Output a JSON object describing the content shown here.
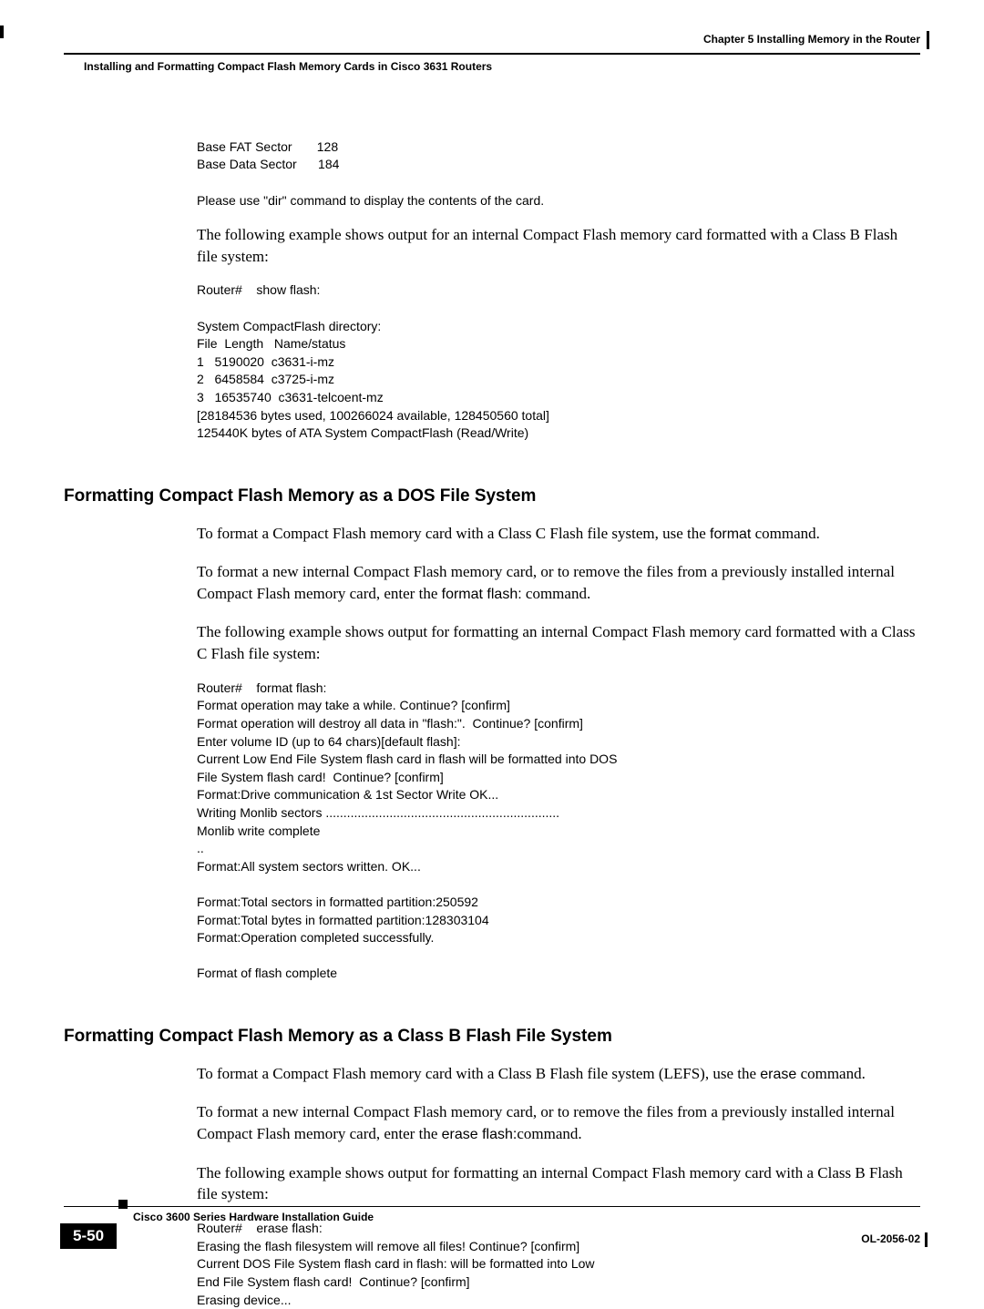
{
  "header": {
    "chapter": "Chapter 5    Installing Memory in the Router",
    "section": "Installing and Formatting Compact Flash Memory Cards in Cisco 3631 Routers"
  },
  "block1": {
    "table": "Base FAT Sector       128\nBase Data Sector      184",
    "note": "Please use \"dir\" command to display the contents of the card.",
    "intro": "The following example shows output for an internal Compact Flash memory card formatted with a Class B Flash file system:",
    "code": "Router#    show flash:\n\nSystem CompactFlash directory:\nFile  Length   Name/status\n1   5190020  c3631-i-mz\n2   6458584  c3725-i-mz\n3   16535740  c3631-telcoent-mz\n[28184536 bytes used, 100266024 available, 128450560 total]\n125440K bytes of ATA System CompactFlash (Read/Write)"
  },
  "section2": {
    "heading": "Formatting Compact Flash Memory as a DOS File System",
    "p1a": "To format a Compact Flash memory card with a Class C Flash file system, use the ",
    "p1cmd": "format",
    "p1b": " command.",
    "p2a": "To format a new internal Compact Flash memory card, or to remove the files from a previously installed internal Compact Flash memory card, enter the ",
    "p2cmd": "format flash:",
    "p2b": " command.",
    "p3": "The following example shows output for formatting an internal Compact Flash memory card formatted with a Class C Flash file system:",
    "code": "Router#    format flash:\nFormat operation may take a while. Continue? [confirm]\nFormat operation will destroy all data in \"flash:\".  Continue? [confirm]\nEnter volume ID (up to 64 chars)[default flash]:\nCurrent Low End File System flash card in flash will be formatted into DOS\nFile System flash card!  Continue? [confirm]\nFormat:Drive communication & 1st Sector Write OK...\nWriting Monlib sectors ..................................................................\nMonlib write complete\n..\nFormat:All system sectors written. OK...\n\nFormat:Total sectors in formatted partition:250592\nFormat:Total bytes in formatted partition:128303104\nFormat:Operation completed successfully.\n\nFormat of flash complete"
  },
  "section3": {
    "heading": "Formatting Compact Flash Memory as a Class B Flash File System",
    "p1a": "To format a Compact Flash memory card with a Class B Flash file system (LEFS), use the ",
    "p1cmd": "erase",
    "p1b": " command.",
    "p2a": "To format a new internal Compact Flash memory card, or to remove the files from a previously installed internal Compact Flash memory card, enter the ",
    "p2cmd": "erase flash:",
    "p2b": "command.",
    "p3": "The following example shows output for formatting an internal Compact Flash memory card with a Class B Flash file system:",
    "code": "Router#    erase flash:\nErasing the flash filesystem will remove all files! Continue? [confirm]\nCurrent DOS File System flash card in flash: will be formatted into Low\nEnd File System flash card!  Continue? [confirm]\nErasing device..."
  },
  "footer": {
    "title": "Cisco 3600 Series Hardware Installation Guide",
    "page": "5-50",
    "doc": "OL-2056-02"
  }
}
